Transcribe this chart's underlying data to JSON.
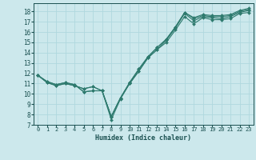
{
  "xlabel": "Humidex (Indice chaleur)",
  "bg_color": "#cce8ec",
  "grid_color": "#b0d8de",
  "line_color": "#2e7a6e",
  "xlim": [
    -0.5,
    23.5
  ],
  "ylim": [
    7,
    18.8
  ],
  "xticks": [
    0,
    1,
    2,
    3,
    4,
    5,
    6,
    7,
    8,
    9,
    10,
    11,
    12,
    13,
    14,
    15,
    16,
    17,
    18,
    19,
    20,
    21,
    22,
    23
  ],
  "yticks": [
    7,
    8,
    9,
    10,
    11,
    12,
    13,
    14,
    15,
    16,
    17,
    18
  ],
  "series": [
    [
      11.8,
      11.1,
      10.8,
      11.0,
      10.8,
      10.5,
      10.7,
      10.3,
      7.5,
      9.5,
      11.0,
      12.2,
      13.5,
      14.3,
      15.0,
      16.2,
      17.5,
      16.8,
      17.4,
      17.2,
      17.2,
      17.3,
      17.8,
      17.9
    ],
    [
      11.8,
      11.1,
      10.8,
      11.0,
      10.8,
      10.5,
      10.7,
      10.3,
      7.8,
      9.6,
      11.0,
      12.2,
      13.5,
      14.3,
      15.2,
      16.4,
      17.8,
      17.1,
      17.5,
      17.4,
      17.3,
      17.5,
      17.9,
      18.1
    ],
    [
      11.8,
      11.2,
      10.9,
      11.1,
      10.9,
      10.2,
      10.3,
      10.3,
      7.8,
      9.6,
      11.1,
      12.4,
      13.6,
      14.5,
      15.3,
      16.5,
      17.9,
      17.3,
      17.6,
      17.5,
      17.5,
      17.6,
      18.0,
      18.2
    ],
    [
      11.8,
      11.2,
      10.9,
      11.1,
      10.9,
      10.2,
      10.3,
      10.3,
      7.8,
      9.6,
      11.1,
      12.4,
      13.6,
      14.5,
      15.3,
      16.5,
      17.9,
      17.4,
      17.7,
      17.6,
      17.6,
      17.7,
      18.1,
      18.3
    ]
  ]
}
